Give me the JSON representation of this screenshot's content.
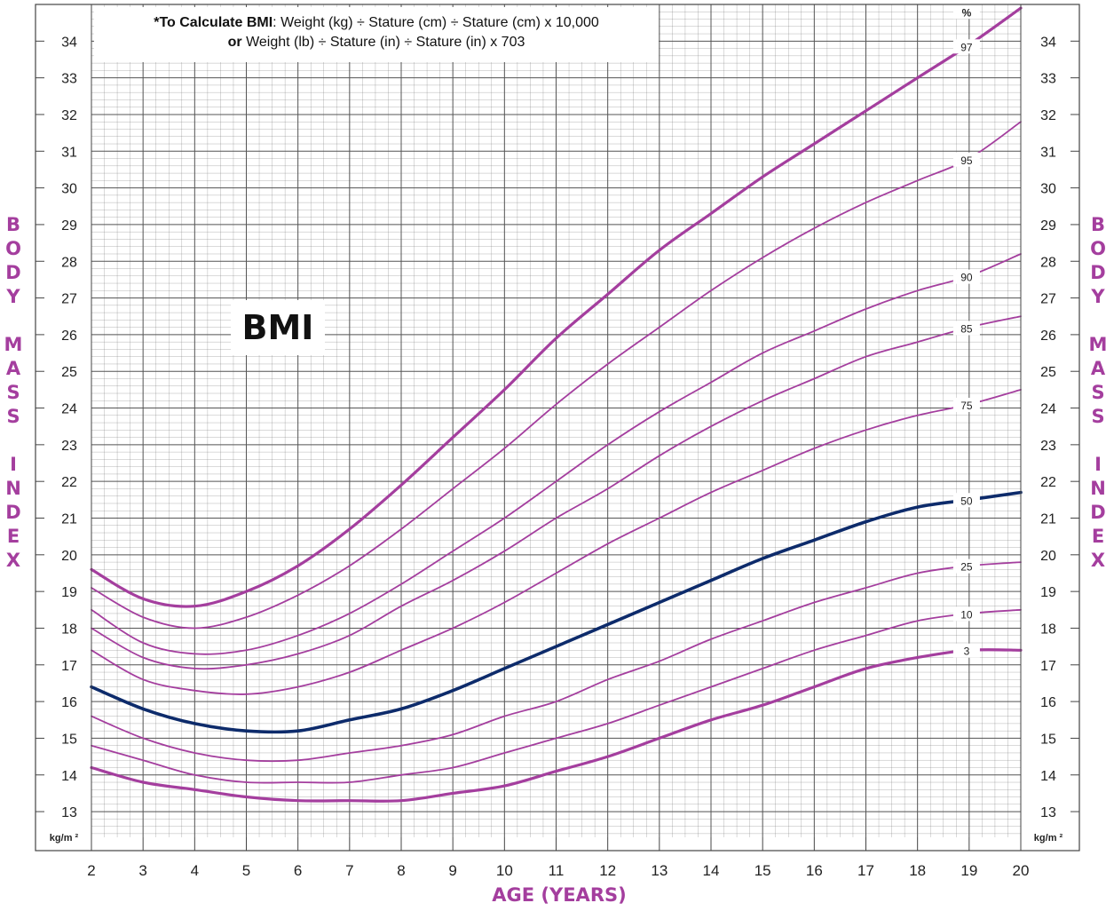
{
  "formula": {
    "line1_bold": "*To Calculate BMI",
    "line1_rest": ": Weight (kg) ÷ Stature (cm) ÷ Stature (cm) x 10,000",
    "line2_bold": "or",
    "line2_rest": " Weight (lb) ÷ Stature (in) ÷ Stature (in) x 703"
  },
  "side_label_words": [
    "BODY",
    "MASS",
    "INDEX"
  ],
  "chart_data": {
    "type": "line",
    "title": "BMI",
    "xlabel": "AGE (YEARS)",
    "ylabel": "BODY MASS INDEX",
    "unit_label": "kg/m ²",
    "percentile_header": "%",
    "xlim": [
      2,
      20
    ],
    "ylim": [
      12.3,
      35
    ],
    "x_ticks": [
      2,
      3,
      4,
      5,
      6,
      7,
      8,
      9,
      10,
      11,
      12,
      13,
      14,
      15,
      16,
      17,
      18,
      19,
      20
    ],
    "y_ticks": [
      13,
      14,
      15,
      16,
      17,
      18,
      19,
      20,
      21,
      22,
      23,
      24,
      25,
      26,
      27,
      28,
      29,
      30,
      31,
      32,
      33,
      34
    ],
    "grid": true,
    "colors": {
      "percentile": "#a43e9e",
      "median": "#0d2b6b",
      "grid": "#777777"
    },
    "x": [
      2,
      3,
      4,
      5,
      6,
      7,
      8,
      9,
      10,
      11,
      12,
      13,
      14,
      15,
      16,
      17,
      18,
      19,
      20
    ],
    "series": [
      {
        "name": "97",
        "values": [
          19.6,
          18.8,
          18.6,
          19.0,
          19.7,
          20.7,
          21.9,
          23.2,
          24.5,
          25.9,
          27.1,
          28.3,
          29.3,
          30.3,
          31.2,
          32.1,
          33.0,
          33.9,
          34.9
        ]
      },
      {
        "name": "95",
        "values": [
          19.1,
          18.3,
          18.0,
          18.3,
          18.9,
          19.7,
          20.7,
          21.8,
          22.9,
          24.1,
          25.2,
          26.2,
          27.2,
          28.1,
          28.9,
          29.6,
          30.2,
          30.8,
          31.8
        ]
      },
      {
        "name": "90",
        "values": [
          18.5,
          17.6,
          17.3,
          17.4,
          17.8,
          18.4,
          19.2,
          20.1,
          21.0,
          22.0,
          23.0,
          23.9,
          24.7,
          25.5,
          26.1,
          26.7,
          27.2,
          27.6,
          28.2
        ]
      },
      {
        "name": "85",
        "values": [
          18.0,
          17.2,
          16.9,
          17.0,
          17.3,
          17.8,
          18.6,
          19.3,
          20.1,
          21.0,
          21.8,
          22.7,
          23.5,
          24.2,
          24.8,
          25.4,
          25.8,
          26.2,
          26.5
        ]
      },
      {
        "name": "75",
        "values": [
          17.4,
          16.6,
          16.3,
          16.2,
          16.4,
          16.8,
          17.4,
          18.0,
          18.7,
          19.5,
          20.3,
          21.0,
          21.7,
          22.3,
          22.9,
          23.4,
          23.8,
          24.1,
          24.5
        ]
      },
      {
        "name": "50",
        "values": [
          16.4,
          15.8,
          15.4,
          15.2,
          15.2,
          15.5,
          15.8,
          16.3,
          16.9,
          17.5,
          18.1,
          18.7,
          19.3,
          19.9,
          20.4,
          20.9,
          21.3,
          21.5,
          21.7
        ]
      },
      {
        "name": "25",
        "values": [
          15.6,
          15.0,
          14.6,
          14.4,
          14.4,
          14.6,
          14.8,
          15.1,
          15.6,
          16.0,
          16.6,
          17.1,
          17.7,
          18.2,
          18.7,
          19.1,
          19.5,
          19.7,
          19.8
        ]
      },
      {
        "name": "10",
        "values": [
          14.8,
          14.4,
          14.0,
          13.8,
          13.8,
          13.8,
          14.0,
          14.2,
          14.6,
          15.0,
          15.4,
          15.9,
          16.4,
          16.9,
          17.4,
          17.8,
          18.2,
          18.4,
          18.5
        ]
      },
      {
        "name": "3",
        "values": [
          14.2,
          13.8,
          13.6,
          13.4,
          13.3,
          13.3,
          13.3,
          13.5,
          13.7,
          14.1,
          14.5,
          15.0,
          15.5,
          15.9,
          16.4,
          16.9,
          17.2,
          17.4,
          17.4
        ]
      }
    ]
  }
}
